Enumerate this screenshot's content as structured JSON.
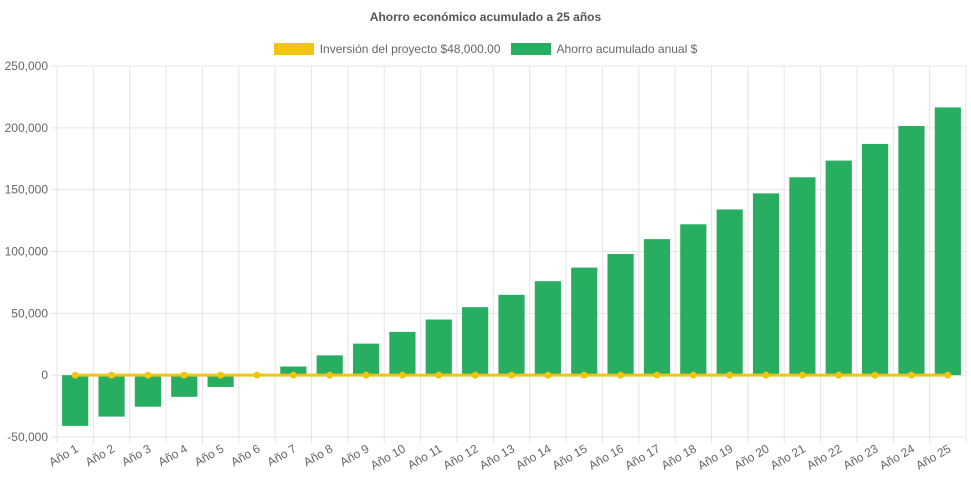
{
  "chart_data": {
    "type": "bar",
    "title": "Ahorro económico acumulado a 25 años",
    "categories": [
      "Año 1",
      "Año 2",
      "Año 3",
      "Año 4",
      "Año 5",
      "Año 6",
      "Año 7",
      "Año 8",
      "Año 9",
      "Año 10",
      "Año 11",
      "Año 12",
      "Año 13",
      "Año 14",
      "Año 15",
      "Año 16",
      "Año 17",
      "Año 18",
      "Año 19",
      "Año 20",
      "Año 21",
      "Año 22",
      "Año 23",
      "Año 24",
      "Año 25"
    ],
    "series": [
      {
        "name": "Inversión del proyecto $48,000.00",
        "kind": "line",
        "color": "#f1c40f",
        "values": [
          0,
          0,
          0,
          0,
          0,
          0,
          0,
          0,
          0,
          0,
          0,
          0,
          0,
          0,
          0,
          0,
          0,
          0,
          0,
          0,
          0,
          0,
          0,
          0,
          0
        ]
      },
      {
        "name": "Ahorro acumulado anual $",
        "kind": "bar",
        "color": "#27ae60",
        "values": [
          -41000,
          -33500,
          -25500,
          -17500,
          -9500,
          -500,
          7000,
          16000,
          25500,
          35000,
          45000,
          55000,
          65000,
          76000,
          87000,
          98000,
          110000,
          122000,
          134000,
          147000,
          160000,
          173500,
          187000,
          201500,
          216500
        ]
      }
    ],
    "ylim": [
      -50000,
      250000
    ],
    "yticks": [
      "250,000",
      "200,000",
      "150,000",
      "100,000",
      "50,000",
      "0",
      "-50,000"
    ],
    "ytick_values": [
      250000,
      200000,
      150000,
      100000,
      50000,
      0,
      -50000
    ],
    "grid": true,
    "legend": "top"
  }
}
